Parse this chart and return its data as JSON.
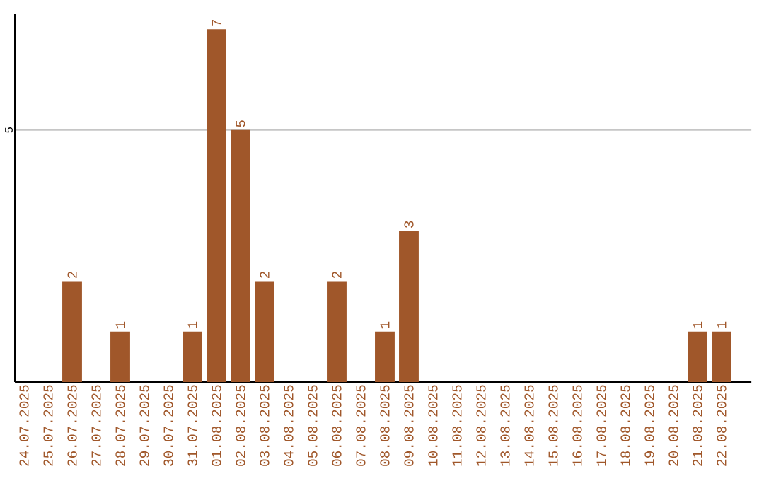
{
  "chart_data": {
    "type": "bar",
    "categories": [
      "24.07.2025",
      "25.07.2025",
      "26.07.2025",
      "27.07.2025",
      "28.07.2025",
      "29.07.2025",
      "30.07.2025",
      "31.07.2025",
      "01.08.2025",
      "02.08.2025",
      "03.08.2025",
      "04.08.2025",
      "05.08.2025",
      "06.08.2025",
      "07.08.2025",
      "08.08.2025",
      "09.08.2025",
      "10.08.2025",
      "11.08.2025",
      "12.08.2025",
      "13.08.2025",
      "14.08.2025",
      "15.08.2025",
      "16.08.2025",
      "17.08.2025",
      "18.08.2025",
      "19.08.2025",
      "20.08.2025",
      "21.08.2025",
      "22.08.2025"
    ],
    "values": [
      0,
      0,
      2,
      0,
      1,
      0,
      0,
      1,
      7,
      5,
      2,
      0,
      0,
      2,
      0,
      1,
      3,
      0,
      0,
      0,
      0,
      0,
      0,
      0,
      0,
      0,
      0,
      0,
      1,
      1
    ],
    "value_labels": [
      null,
      null,
      "2",
      null,
      "1",
      null,
      null,
      "1",
      "7",
      "5",
      "2",
      null,
      null,
      "2",
      null,
      "1",
      "3",
      null,
      null,
      null,
      null,
      null,
      null,
      null,
      null,
      null,
      null,
      null,
      "1",
      "1"
    ],
    "color": "#a0572a",
    "ylim": [
      0,
      7.3
    ],
    "yticks": [
      5
    ],
    "grid": "y"
  }
}
